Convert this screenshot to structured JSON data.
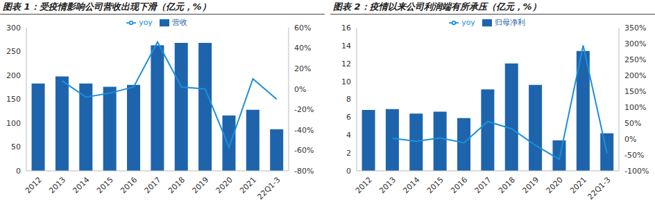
{
  "chart_data": [
    {
      "type": "bar",
      "title": "图表 1：受疫情影响公司营收出现下滑（亿元，%）",
      "categories": [
        "2012",
        "2013",
        "2014",
        "2015",
        "2016",
        "2017",
        "2018",
        "2019",
        "2020",
        "2021",
        "22Q1-3"
      ],
      "series": [
        {
          "name": "营收",
          "type": "bar",
          "color": "#1e64ad",
          "values": [
            183,
            198,
            183,
            176,
            180,
            263,
            268,
            268,
            116,
            128,
            87
          ]
        },
        {
          "name": "yoy",
          "type": "line",
          "axis": "y2",
          "color": "#1c8fdb",
          "values": [
            null,
            8,
            -8,
            -4,
            2,
            46,
            2,
            0,
            -57,
            10,
            -10
          ]
        }
      ],
      "ylim": [
        0,
        300
      ],
      "yticks": [
        0,
        50,
        100,
        150,
        200,
        250,
        300
      ],
      "y2lim": [
        -80,
        60
      ],
      "y2ticks": [
        {
          "value": -80,
          "label": "-80%"
        },
        {
          "value": -60,
          "label": "-60%"
        },
        {
          "value": -40,
          "label": "-40%"
        },
        {
          "value": -20,
          "label": "-20%"
        },
        {
          "value": 0,
          "label": "0%"
        },
        {
          "value": 20,
          "label": "20%"
        },
        {
          "value": 40,
          "label": "40%"
        },
        {
          "value": 60,
          "label": "60%"
        }
      ],
      "legend": "top",
      "grid": false
    },
    {
      "type": "bar",
      "title": "图表 2：疫情以来公司利润端有所承压（亿元，%）",
      "categories": [
        "2012",
        "2013",
        "2014",
        "2015",
        "2016",
        "2017",
        "2018",
        "2019",
        "2020",
        "2021",
        "22Q1-3"
      ],
      "series": [
        {
          "name": "归母净利",
          "type": "bar",
          "color": "#1e64ad",
          "values": [
            6.8,
            6.9,
            6.4,
            6.6,
            5.9,
            9.1,
            12.0,
            9.6,
            3.4,
            13.4,
            4.2
          ]
        },
        {
          "name": "yoy",
          "type": "line",
          "axis": "y2",
          "color": "#1c8fdb",
          "values": [
            null,
            2,
            -7,
            3,
            -12,
            55,
            32,
            -20,
            -64,
            294,
            -45
          ]
        }
      ],
      "ylim": [
        0,
        16
      ],
      "yticks": [
        0,
        2,
        4,
        6,
        8,
        10,
        12,
        14,
        16
      ],
      "y2lim": [
        -100,
        350
      ],
      "y2ticks": [
        {
          "value": -100,
          "label": "-100%"
        },
        {
          "value": -50,
          "label": "-50%"
        },
        {
          "value": 0,
          "label": "0%"
        },
        {
          "value": 50,
          "label": "50%"
        },
        {
          "value": 100,
          "label": "100%"
        },
        {
          "value": 150,
          "label": "150%"
        },
        {
          "value": 200,
          "label": "200%"
        },
        {
          "value": 250,
          "label": "250%"
        },
        {
          "value": 300,
          "label": "300%"
        },
        {
          "value": 350,
          "label": "350%"
        }
      ],
      "legend": "top",
      "grid": false
    }
  ]
}
